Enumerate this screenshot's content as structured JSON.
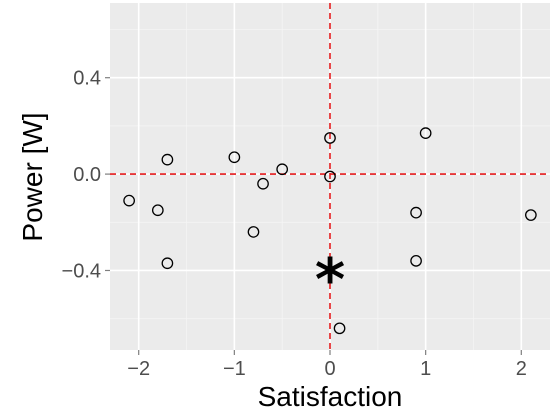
{
  "chart_data": {
    "type": "scatter",
    "title": "",
    "xlabel": "Satisfaction",
    "ylabel": "Power [W]",
    "xlim": [
      -2.3,
      2.3
    ],
    "ylim": [
      -0.73,
      0.71
    ],
    "x_ticks": [
      -2,
      -1,
      0,
      1,
      2
    ],
    "x_tick_labels": [
      "−2",
      "−1",
      "0",
      "1",
      "2"
    ],
    "y_ticks": [
      -0.4,
      0.0,
      0.4
    ],
    "y_tick_labels": [
      "−0.4",
      "0.0",
      "0.4"
    ],
    "grid": true,
    "background": "#ebebeb",
    "grid_color": "#ffffff",
    "reference_lines": {
      "color": "#e41a1c",
      "style": "dashed",
      "x": 0,
      "y": 0
    },
    "points": [
      {
        "x": -2.1,
        "y": -0.11
      },
      {
        "x": -1.8,
        "y": -0.15
      },
      {
        "x": -1.7,
        "y": 0.06
      },
      {
        "x": -1.7,
        "y": -0.37
      },
      {
        "x": -1.0,
        "y": 0.07
      },
      {
        "x": -0.8,
        "y": -0.24
      },
      {
        "x": -0.7,
        "y": -0.04
      },
      {
        "x": -0.5,
        "y": 0.02
      },
      {
        "x": 0.0,
        "y": 0.15
      },
      {
        "x": 0.0,
        "y": -0.01
      },
      {
        "x": 0.1,
        "y": -0.64
      },
      {
        "x": 0.9,
        "y": -0.16
      },
      {
        "x": 0.9,
        "y": -0.36
      },
      {
        "x": 1.0,
        "y": 0.17
      },
      {
        "x": 2.1,
        "y": -0.17
      }
    ],
    "highlight_point": {
      "x": 0.0,
      "y": -0.43,
      "marker": "*"
    }
  }
}
